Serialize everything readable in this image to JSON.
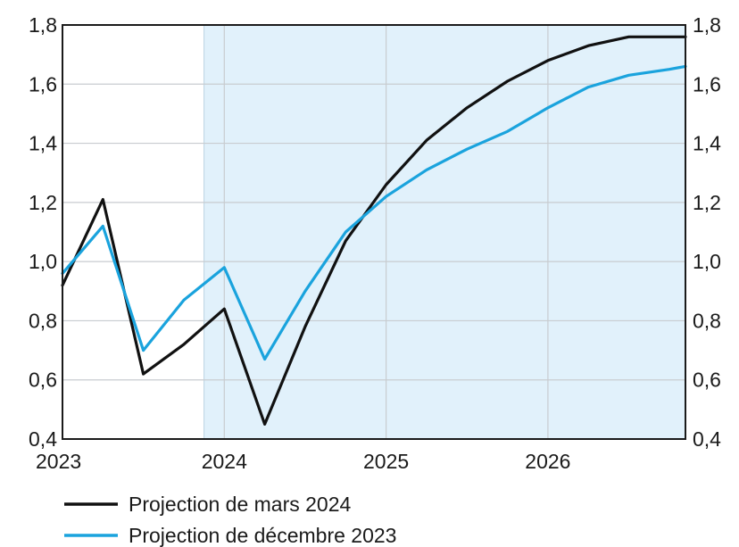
{
  "chart_data": {
    "type": "line",
    "title": "",
    "xlabel": "",
    "ylabel": "",
    "ylim": [
      0.4,
      1.8
    ],
    "y_ticks": [
      "0,4",
      "0,6",
      "0,8",
      "1,0",
      "1,2",
      "1,4",
      "1,6",
      "1,8"
    ],
    "y_tick_values": [
      0.4,
      0.6,
      0.8,
      1.0,
      1.2,
      1.4,
      1.6,
      1.8
    ],
    "x_ticks": [
      "2023",
      "2024",
      "2025",
      "2026"
    ],
    "x_tick_values": [
      0.0,
      1.0,
      2.0,
      3.0
    ],
    "xlim": [
      0.0,
      3.85
    ],
    "shaded_region": {
      "from": 0.875,
      "to": 3.85,
      "color": "#e1f1fb"
    },
    "grid": true,
    "legend_position": "bottom-left",
    "x": [
      0.0,
      0.25,
      0.5,
      0.75,
      1.0,
      1.25,
      1.5,
      1.75,
      2.0,
      2.25,
      2.5,
      2.75,
      3.0,
      3.25,
      3.5,
      3.75,
      3.85
    ],
    "series": [
      {
        "name": "Projection de mars 2024",
        "color": "#111111",
        "values": [
          0.92,
          1.21,
          0.62,
          0.72,
          0.84,
          0.45,
          0.78,
          1.07,
          1.26,
          1.41,
          1.52,
          1.61,
          1.68,
          1.73,
          1.76,
          1.76,
          1.76
        ]
      },
      {
        "name": "Projection de décembre 2023",
        "color": "#1aa3dd",
        "values": [
          0.96,
          1.12,
          0.7,
          0.87,
          0.98,
          0.67,
          0.9,
          1.1,
          1.22,
          1.31,
          1.38,
          1.44,
          1.52,
          1.59,
          1.63,
          1.65,
          1.66
        ]
      }
    ]
  }
}
